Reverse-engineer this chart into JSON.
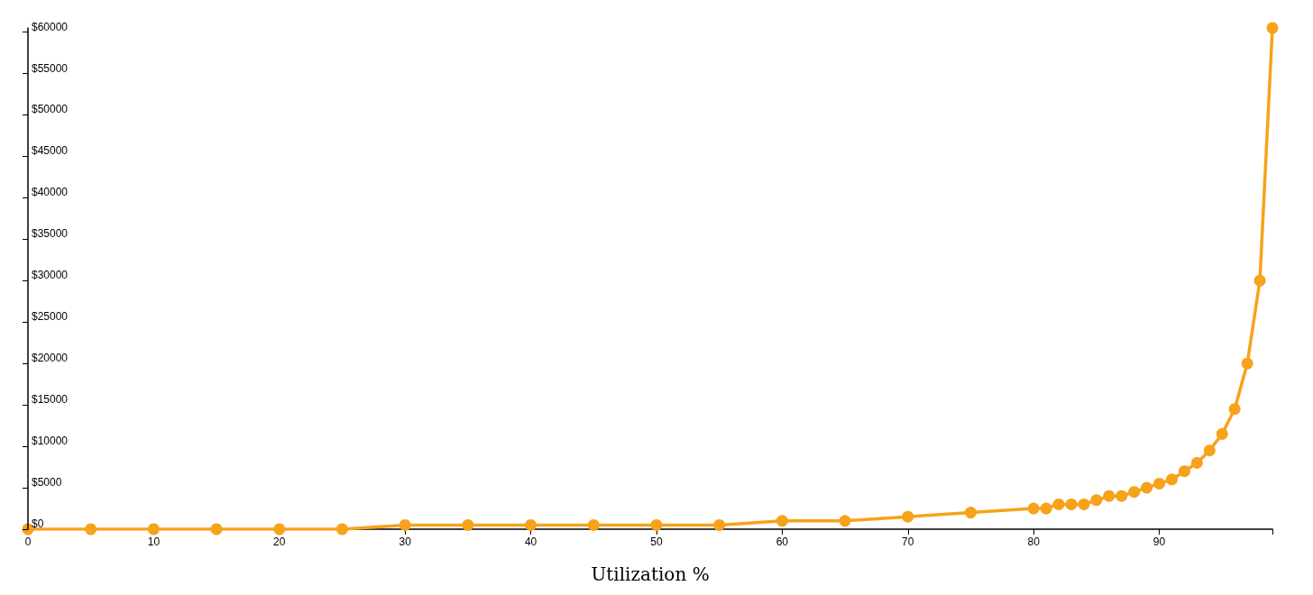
{
  "chart_data": {
    "type": "line",
    "xlabel": "Utilization %",
    "x": [
      0,
      5,
      10,
      15,
      20,
      25,
      30,
      35,
      40,
      45,
      50,
      55,
      60,
      65,
      70,
      75,
      80,
      81,
      82,
      83,
      84,
      85,
      86,
      87,
      88,
      89,
      90,
      91,
      92,
      93,
      94,
      95,
      96,
      97,
      98,
      99
    ],
    "series": [
      {
        "color": "#f7a21b",
        "values": [
          0,
          0,
          0,
          0,
          0,
          0,
          500,
          500,
          500,
          500,
          500,
          500,
          1000,
          1000,
          1500,
          2000,
          2500,
          2500,
          3000,
          3000,
          3000,
          3500,
          4000,
          4000,
          4500,
          5000,
          5500,
          6000,
          7000,
          8000,
          9500,
          11500,
          14500,
          20000,
          30000,
          60500
        ]
      }
    ],
    "xlim": [
      0,
      99
    ],
    "xticks": [
      0,
      10,
      20,
      30,
      40,
      50,
      60,
      70,
      80,
      90,
      {
        "value": 99,
        "label": null
      }
    ],
    "ylim": [
      0,
      60500
    ],
    "yticks": [
      {
        "value": 0,
        "label": "$0"
      },
      {
        "value": 5000,
        "label": "$5000"
      },
      {
        "value": 10000,
        "label": "$10000"
      },
      {
        "value": 15000,
        "label": "$15000"
      },
      {
        "value": 20000,
        "label": "$20000"
      },
      {
        "value": 25000,
        "label": "$25000"
      },
      {
        "value": 30000,
        "label": "$30000"
      },
      {
        "value": 35000,
        "label": "$35000"
      },
      {
        "value": 40000,
        "label": "$40000"
      },
      {
        "value": 45000,
        "label": "$45000"
      },
      {
        "value": 50000,
        "label": "$50000"
      },
      {
        "value": 55000,
        "label": "$55000"
      },
      {
        "value": 60000,
        "label": "$60000"
      }
    ],
    "grid": false,
    "marker": "circle",
    "line_style": "solid"
  }
}
